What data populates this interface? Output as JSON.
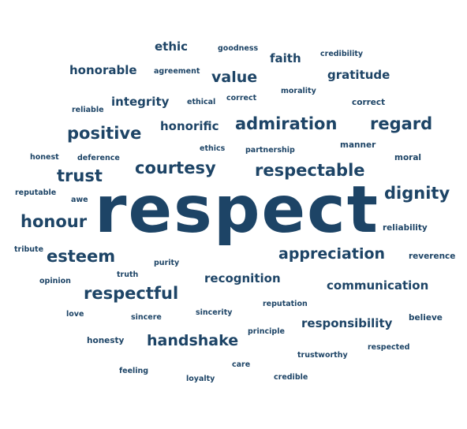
{
  "colors": {
    "text": "#1d4466",
    "background": "#ffffff"
  },
  "words": [
    "ethic",
    "goodness",
    "faith",
    "credibility",
    "honorable",
    "agreement",
    "value",
    "morality",
    "gratitude",
    "reliable",
    "integrity",
    "ethical",
    "correct",
    "correct",
    "positive",
    "honorific",
    "admiration",
    "regard",
    "ethics",
    "partnership",
    "manner",
    "honest",
    "deference",
    "moral",
    "trust",
    "courtesy",
    "respectable",
    "reputable",
    "awe",
    "dignity",
    "respect",
    "honour",
    "reliability",
    "tribute",
    "esteem",
    "appreciation",
    "reverence",
    "purity",
    "truth",
    "opinion",
    "recognition",
    "communication",
    "respectful",
    "reputation",
    "love",
    "sincere",
    "sincerity",
    "responsibility",
    "believe",
    "principle",
    "honesty",
    "handshake",
    "respected",
    "trustworthy",
    "care",
    "feeling",
    "loyalty",
    "credible"
  ]
}
